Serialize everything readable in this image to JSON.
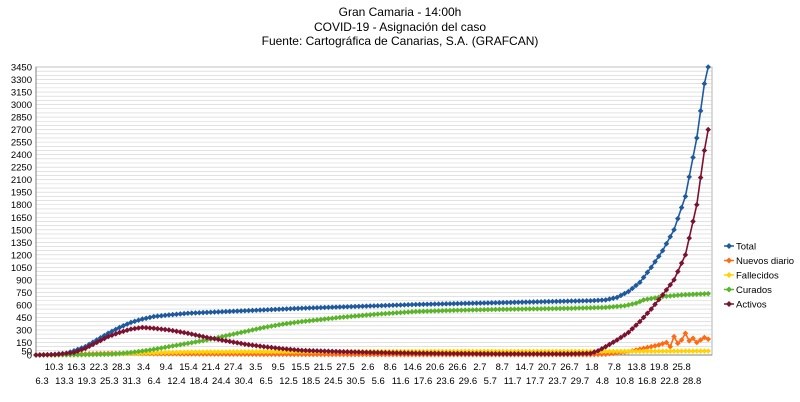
{
  "chart_data": {
    "type": "line",
    "title": [
      "Gran Camaria - 14:00h",
      "COVID-19 - Asignación del caso",
      "Fuente: Cartográfica de Canarias, S.A. (GRAFCAN)"
    ],
    "xlabel": "",
    "ylabel": "",
    "ylim": [
      0,
      3450
    ],
    "yticks": [
      0,
      150,
      300,
      450,
      600,
      750,
      900,
      1050,
      1200,
      1350,
      1500,
      1650,
      1800,
      1950,
      2100,
      2250,
      2400,
      2550,
      2700,
      2850,
      3000,
      3150,
      3300,
      3450
    ],
    "yticks_extra": [
      0,
      50
    ],
    "grid": true,
    "legend_position": "right",
    "x_ticks_top": [
      "10.3",
      "16.3",
      "22.3",
      "28.3",
      "3.4",
      "9.4",
      "15.4",
      "21.4",
      "27.4",
      "3.5",
      "9.5",
      "15.5",
      "21.5",
      "27.5",
      "2.6",
      "8.6",
      "14.6",
      "20.6",
      "26.6",
      "2.7",
      "8.7",
      "14.7",
      "20.7",
      "26.7",
      "1.8",
      "7.8",
      "13.8",
      "19.8",
      "25.8"
    ],
    "x_ticks_bottom": [
      "6.3",
      "13.3",
      "19.3",
      "25.3",
      "31.3",
      "6.4",
      "12.4",
      "18.4",
      "24.4",
      "30.4",
      "6.5",
      "12.5",
      "18.5",
      "24.5",
      "30.5",
      "5.6",
      "11.6",
      "17.6",
      "23.6",
      "29.6",
      "5.7",
      "11.7",
      "17.7",
      "23.7",
      "29.7",
      "4.8",
      "10.8",
      "16.8",
      "22.8",
      "28.8"
    ],
    "x_range_days": [
      0,
      175
    ],
    "series": [
      {
        "name": "Total",
        "color": "#1f5a9e",
        "marker": "diamond",
        "points": [
          [
            0,
            0
          ],
          [
            4,
            5
          ],
          [
            8,
            20
          ],
          [
            10,
            50
          ],
          [
            13,
            100
          ],
          [
            16,
            180
          ],
          [
            19,
            260
          ],
          [
            22,
            330
          ],
          [
            25,
            390
          ],
          [
            28,
            430
          ],
          [
            31,
            460
          ],
          [
            35,
            480
          ],
          [
            40,
            500
          ],
          [
            50,
            520
          ],
          [
            60,
            540
          ],
          [
            70,
            560
          ],
          [
            80,
            575
          ],
          [
            90,
            590
          ],
          [
            100,
            605
          ],
          [
            110,
            615
          ],
          [
            120,
            625
          ],
          [
            130,
            635
          ],
          [
            140,
            645
          ],
          [
            146,
            650
          ],
          [
            150,
            660
          ],
          [
            153,
            690
          ],
          [
            156,
            760
          ],
          [
            159,
            870
          ],
          [
            162,
            1050
          ],
          [
            165,
            1250
          ],
          [
            168,
            1500
          ],
          [
            171,
            1900
          ],
          [
            174,
            2600
          ],
          [
            176,
            3250
          ],
          [
            177,
            3450
          ]
        ]
      },
      {
        "name": "Nuevos diario",
        "color": "#ff6a13",
        "marker": "diamond",
        "points": [
          [
            0,
            0
          ],
          [
            20,
            20
          ],
          [
            30,
            15
          ],
          [
            60,
            8
          ],
          [
            100,
            4
          ],
          [
            146,
            4
          ],
          [
            150,
            10
          ],
          [
            153,
            25
          ],
          [
            156,
            40
          ],
          [
            158,
            60
          ],
          [
            160,
            80
          ],
          [
            162,
            100
          ],
          [
            164,
            120
          ],
          [
            166,
            150
          ],
          [
            167,
            100
          ],
          [
            168,
            220
          ],
          [
            169,
            140
          ],
          [
            170,
            180
          ],
          [
            171,
            260
          ],
          [
            172,
            170
          ],
          [
            173,
            200
          ],
          [
            174,
            150
          ],
          [
            175,
            180
          ],
          [
            176,
            210
          ],
          [
            177,
            190
          ]
        ]
      },
      {
        "name": "Fallecidos",
        "color": "#ffd200",
        "marker": "diamond",
        "points": [
          [
            0,
            0
          ],
          [
            10,
            2
          ],
          [
            20,
            10
          ],
          [
            30,
            25
          ],
          [
            40,
            35
          ],
          [
            60,
            40
          ],
          [
            100,
            43
          ],
          [
            146,
            43
          ],
          [
            160,
            44
          ],
          [
            177,
            48
          ]
        ]
      },
      {
        "name": "Curados",
        "color": "#5ab52a",
        "marker": "diamond",
        "points": [
          [
            0,
            0
          ],
          [
            10,
            2
          ],
          [
            20,
            10
          ],
          [
            25,
            30
          ],
          [
            30,
            60
          ],
          [
            35,
            100
          ],
          [
            40,
            140
          ],
          [
            45,
            180
          ],
          [
            50,
            230
          ],
          [
            55,
            280
          ],
          [
            60,
            330
          ],
          [
            65,
            370
          ],
          [
            70,
            400
          ],
          [
            80,
            450
          ],
          [
            90,
            490
          ],
          [
            100,
            520
          ],
          [
            110,
            535
          ],
          [
            120,
            545
          ],
          [
            130,
            552
          ],
          [
            140,
            558
          ],
          [
            150,
            570
          ],
          [
            155,
            590
          ],
          [
            158,
            620
          ],
          [
            160,
            660
          ],
          [
            165,
            700
          ],
          [
            170,
            720
          ],
          [
            177,
            735
          ]
        ]
      },
      {
        "name": "Activos",
        "color": "#7a1230",
        "marker": "diamond",
        "points": [
          [
            0,
            0
          ],
          [
            5,
            5
          ],
          [
            10,
            30
          ],
          [
            13,
            80
          ],
          [
            16,
            150
          ],
          [
            19,
            220
          ],
          [
            22,
            270
          ],
          [
            25,
            310
          ],
          [
            28,
            330
          ],
          [
            31,
            320
          ],
          [
            35,
            300
          ],
          [
            40,
            260
          ],
          [
            45,
            210
          ],
          [
            50,
            170
          ],
          [
            55,
            130
          ],
          [
            60,
            100
          ],
          [
            65,
            75
          ],
          [
            70,
            55
          ],
          [
            80,
            40
          ],
          [
            90,
            30
          ],
          [
            100,
            22
          ],
          [
            110,
            18
          ],
          [
            120,
            15
          ],
          [
            130,
            14
          ],
          [
            140,
            14
          ],
          [
            146,
            20
          ],
          [
            148,
            50
          ],
          [
            150,
            100
          ],
          [
            153,
            180
          ],
          [
            156,
            270
          ],
          [
            159,
            400
          ],
          [
            162,
            550
          ],
          [
            165,
            720
          ],
          [
            168,
            900
          ],
          [
            171,
            1200
          ],
          [
            174,
            1800
          ],
          [
            176,
            2450
          ],
          [
            177,
            2700
          ]
        ]
      }
    ]
  }
}
